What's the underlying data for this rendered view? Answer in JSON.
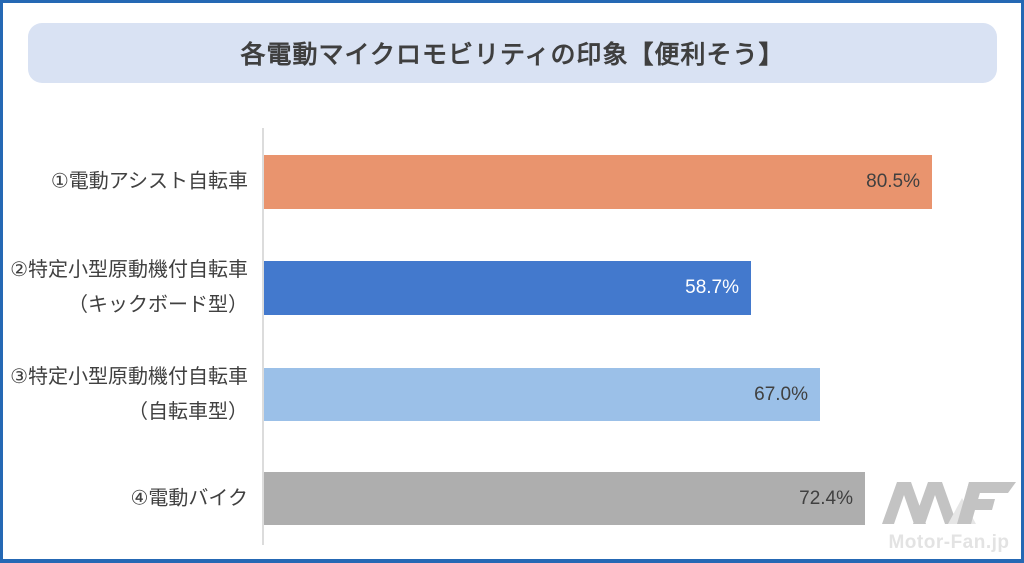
{
  "header": {
    "title": "各電動マイクロモビリティの印象【便利そう】"
  },
  "watermark": {
    "logo": "motor-fan-mf-logo",
    "text": "Motor-Fan.jp"
  },
  "chart_data": {
    "type": "bar",
    "orientation": "horizontal",
    "title": "各電動マイクロモビリティの印象【便利そう】",
    "categories": [
      {
        "lines": [
          "①電動アシスト自転車"
        ]
      },
      {
        "lines": [
          "②特定小型原動機付自転車",
          "（キックボード型）"
        ]
      },
      {
        "lines": [
          "③特定小型原動機付自転車",
          "（自転車型）"
        ]
      },
      {
        "lines": [
          "④電動バイク"
        ]
      }
    ],
    "values": [
      80.5,
      58.7,
      67.0,
      72.4
    ],
    "data_labels": [
      "80.5%",
      "58.7%",
      "67.0%",
      "72.4%"
    ],
    "bar_colors": [
      "#E9946E",
      "#4379CD",
      "#9BC0E8",
      "#AEAEAE"
    ],
    "data_label_colors": [
      "#404040",
      "#FFFFFF",
      "#404040",
      "#404040"
    ],
    "xlim": [
      0,
      88
    ],
    "grid": false,
    "legend": false,
    "axis_line_color": "#DCDCDC",
    "unit": "%"
  },
  "theme": {
    "border_color": "#2568B4",
    "title_box_bg": "#D9E2F3",
    "text_color": "#404040",
    "background": "#FFFFFF"
  }
}
